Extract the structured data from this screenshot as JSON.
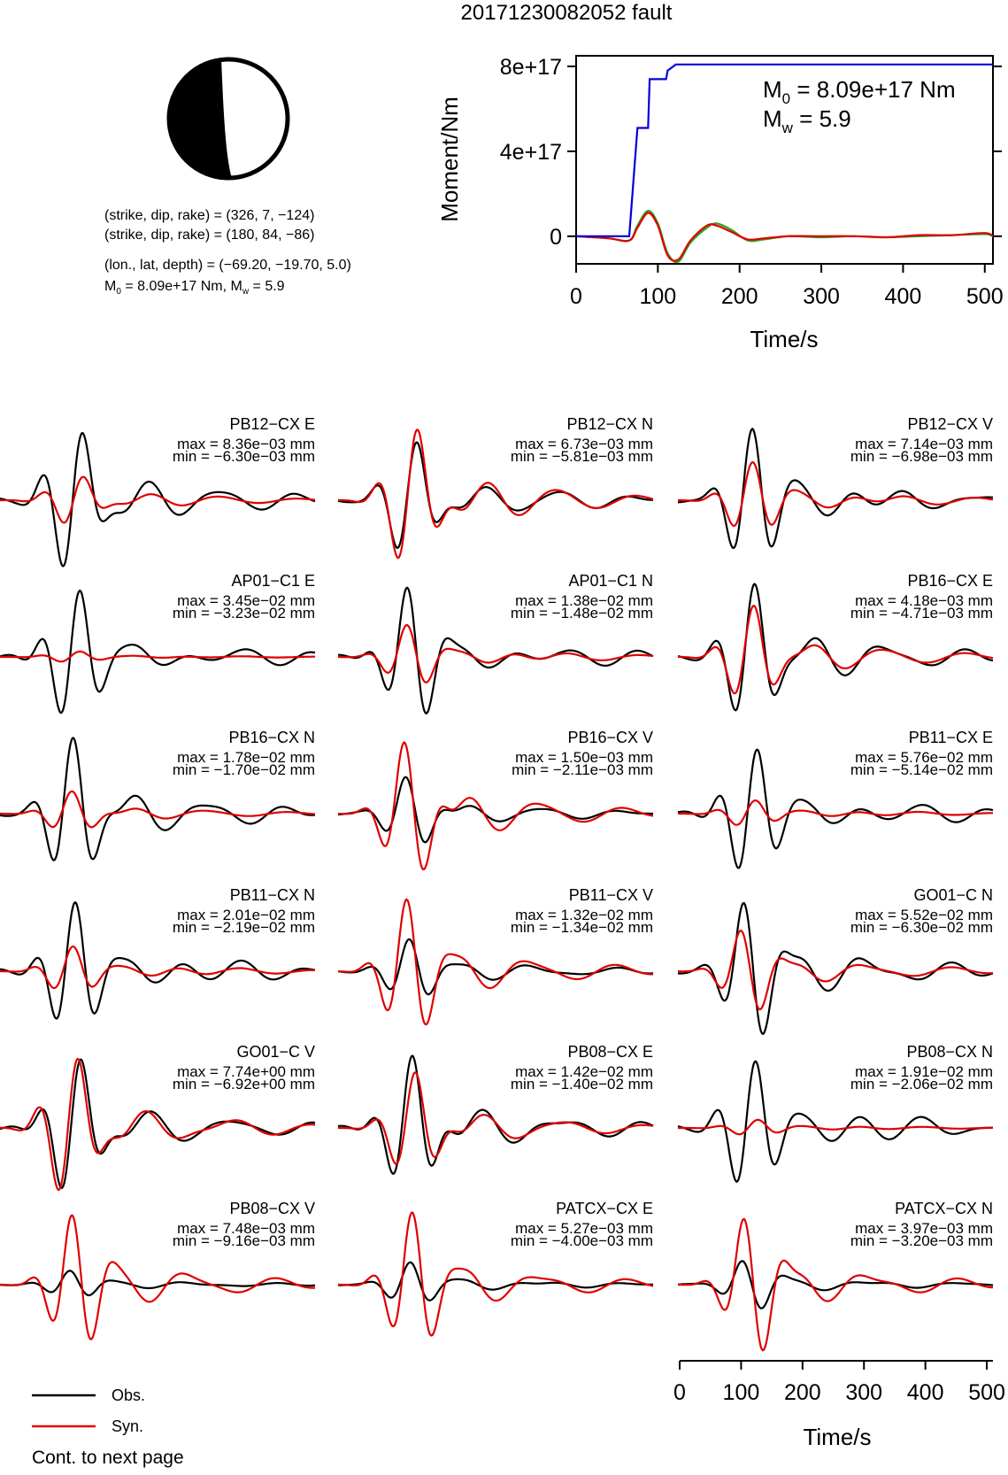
{
  "page_title": "20171230082052 fault",
  "mechanism": {
    "plane1": "(strike, dip, rake) = (326, 7, −124)",
    "plane2": "(strike, dip, rake) = (180, 84, −86)",
    "location": "(lon., lat, depth) = (−69.20, −19.70, 5.0)",
    "summary_m0": "8.09e+17 Nm",
    "summary_mw": "5.9"
  },
  "legend": {
    "obs": "Obs.",
    "syn": "Syn.",
    "footer": "Cont. to next page"
  },
  "colors": {
    "observed": "#000000",
    "synthetic": "#e00000",
    "moment": "#0000dd",
    "moment_rate_green": "#22aa22"
  },
  "chart_data": [
    {
      "type": "line",
      "ylabel": "Moment/Nm",
      "xlabel": "Time/s",
      "xlim": [
        0,
        510
      ],
      "ylim": [
        -1.3e+17,
        8.5e+17
      ],
      "x_ticks": [
        "0",
        "100",
        "200",
        "300",
        "400",
        "500"
      ],
      "y_ticks": [
        "0",
        "4e+17",
        "8e+17"
      ],
      "annotation": {
        "m0_label": "M",
        "m0_sub": "0",
        "m0_value": " = 8.09e+17 Nm",
        "mw_label": "M",
        "mw_sub": "w",
        "mw_value": " = 5.9"
      },
      "series": [
        {
          "color": "#0000dd",
          "kind": "moment",
          "x": [
            0,
            65,
            75,
            77,
            88,
            90,
            100,
            102,
            110,
            112,
            122,
            510
          ],
          "y": [
            0,
            0,
            5.1e+17,
            5.1e+17,
            5.1e+17,
            7.4e+17,
            7.4e+17,
            7.4e+17,
            7.4e+17,
            7.8e+17,
            8.09e+17,
            8.09e+17
          ]
        },
        {
          "color": "#22aa22",
          "kind": "moment-rate",
          "x": [
            0,
            40,
            65,
            75,
            88,
            100,
            112,
            125,
            140,
            160,
            172,
            190,
            210,
            230,
            260,
            300,
            340,
            380,
            420,
            460,
            500,
            510
          ],
          "y": [
            0,
            -1e+16,
            -2e+16,
            5e+16,
            1.2e+17,
            6e+16,
            -8e+16,
            -1.2e+17,
            -3e+16,
            4e+16,
            6e+16,
            3e+16,
            -2e+16,
            -1.5e+16,
            0,
            -5000000000000000.0,
            0,
            -5000000000000000.0,
            0,
            5000000000000000.0,
            1e+16,
            0
          ]
        },
        {
          "color": "#e00000",
          "kind": "moment-rate",
          "x": [
            0,
            40,
            65,
            75,
            88,
            100,
            112,
            125,
            140,
            160,
            172,
            190,
            210,
            230,
            260,
            300,
            340,
            380,
            420,
            460,
            500,
            510
          ],
          "y": [
            0,
            -1e+16,
            -2e+16,
            4e+16,
            1.1e+17,
            5e+16,
            -9e+16,
            -1.1e+17,
            -2e+16,
            5e+16,
            5e+16,
            2e+16,
            -1.5e+16,
            -1e+16,
            0,
            0,
            0,
            -5000000000000000.0,
            5000000000000000.0,
            5000000000000000.0,
            1.5e+16,
            0
          ]
        }
      ]
    },
    {
      "type": "line",
      "xlabel": "Time/s",
      "xlim": [
        0,
        510
      ],
      "x_ticks": [
        "0",
        "100",
        "200",
        "300",
        "400",
        "500"
      ],
      "traces": [
        {
          "name": "PB12−CX E",
          "max": "max = 8.36e−03 mm",
          "min": "min = −6.30e−03 mm",
          "obs_peak": 1.0,
          "syn_peak": 0.35,
          "phase": 0.0
        },
        {
          "name": "PB12−CX N",
          "max": "max = 6.73e−03 mm",
          "min": "min = −5.81e−03 mm",
          "obs_peak": 0.8,
          "syn_peak": 1.0,
          "phase": 0.6
        },
        {
          "name": "PB12−CX V",
          "max": "max = 7.14e−03 mm",
          "min": "min = −6.98e−03 mm",
          "obs_peak": 1.0,
          "syn_peak": 0.55,
          "phase": 1.2
        },
        {
          "name": "AP01−C1 E",
          "max": "max = 3.45e−02 mm",
          "min": "min = −3.23e−02 mm",
          "obs_peak": 1.0,
          "syn_peak": 0.08,
          "phase": 0.3
        },
        {
          "name": "AP01−C1 N",
          "max": "max = 1.38e−02 mm",
          "min": "min = −1.48e−02 mm",
          "obs_peak": 1.0,
          "syn_peak": 0.45,
          "phase": 2.1
        },
        {
          "name": "PB16−CX E",
          "max": "max = 4.18e−03 mm",
          "min": "min = −4.71e−03 mm",
          "obs_peak": 1.0,
          "syn_peak": 0.7,
          "phase": 0.9
        },
        {
          "name": "PB16−CX N",
          "max": "max = 1.78e−02 mm",
          "min": "min = −1.70e−02 mm",
          "obs_peak": 1.0,
          "syn_peak": 0.3,
          "phase": 1.5
        },
        {
          "name": "PB16−CX V",
          "max": "max = 1.50e−03 mm",
          "min": "min = −2.11e−03 mm",
          "obs_peak": 0.5,
          "syn_peak": 1.0,
          "phase": 2.4
        },
        {
          "name": "PB11−CX E",
          "max": "max = 5.76e−02 mm",
          "min": "min = −5.14e−02 mm",
          "obs_peak": 1.0,
          "syn_peak": 0.2,
          "phase": 0.4
        },
        {
          "name": "PB11−CX N",
          "max": "max = 2.01e−02 mm",
          "min": "min = −2.19e−02 mm",
          "obs_peak": 1.0,
          "syn_peak": 0.35,
          "phase": 1.1
        },
        {
          "name": "PB11−CX V",
          "max": "max = 1.32e−02 mm",
          "min": "min = −1.34e−02 mm",
          "obs_peak": 0.45,
          "syn_peak": 1.0,
          "phase": 1.8
        },
        {
          "name": "GO01−C N",
          "max": "max = 5.52e−02 mm",
          "min": "min = −6.30e−02 mm",
          "obs_peak": 1.0,
          "syn_peak": 0.6,
          "phase": 2.7
        },
        {
          "name": "GO01−C V",
          "max": "max = 7.74e+00 mm",
          "min": "min = −6.92e+00 mm",
          "obs_peak": 1.0,
          "syn_peak": 1.0,
          "phase": 0.2
        },
        {
          "name": "PB08−CX E",
          "max": "max = 1.42e−02 mm",
          "min": "min = −1.40e−02 mm",
          "obs_peak": 1.0,
          "syn_peak": 0.75,
          "phase": 1.3
        },
        {
          "name": "PB08−CX N",
          "max": "max = 1.91e−02 mm",
          "min": "min = −2.06e−02 mm",
          "obs_peak": 1.0,
          "syn_peak": 0.12,
          "phase": 0.7
        },
        {
          "name": "PB08−CX V",
          "max": "max = 7.48e−03 mm",
          "min": "min = −9.16e−03 mm",
          "obs_peak": 0.2,
          "syn_peak": 1.0,
          "phase": 2.0
        },
        {
          "name": "PATCX−CX E",
          "max": "max = 5.27e−03 mm",
          "min": "min = −4.00e−03 mm",
          "obs_peak": 0.3,
          "syn_peak": 1.0,
          "phase": 1.6
        },
        {
          "name": "PATCX−CX N",
          "max": "max = 3.97e−03 mm",
          "min": "min = −3.20e−03 mm",
          "obs_peak": 0.35,
          "syn_peak": 1.0,
          "phase": 2.9
        }
      ]
    }
  ]
}
